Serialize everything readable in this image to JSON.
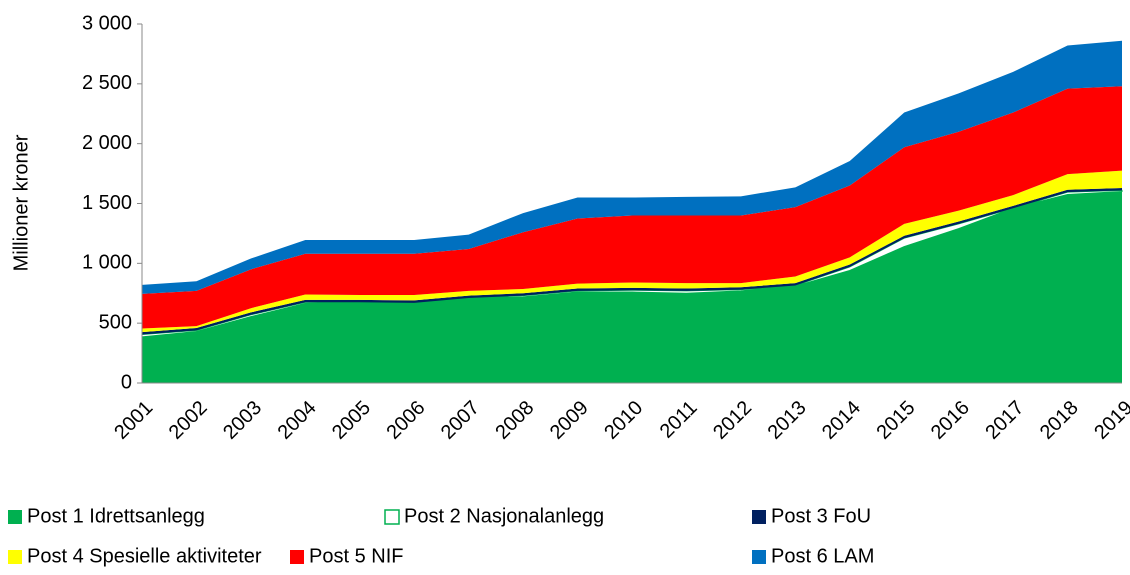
{
  "chart_data": {
    "type": "stacked-area",
    "y_label": "Millioner kroner",
    "categories": [
      "2001",
      "2002",
      "2003",
      "2004",
      "2005",
      "2006",
      "2007",
      "2008",
      "2009",
      "2010",
      "2011",
      "2012",
      "2013",
      "2014",
      "2015",
      "2016",
      "2017",
      "2018",
      "2019"
    ],
    "series": [
      {
        "name": "Post 1 Idrettsanlegg",
        "color": "#00b050",
        "values": [
          385,
          430,
          555,
          665,
          670,
          665,
          705,
          720,
          760,
          760,
          750,
          770,
          810,
          940,
          1140,
          1290,
          1460,
          1575,
          1600
        ]
      },
      {
        "name": "Post 2 Nasjonalanlegg",
        "color": "#ffffff",
        "values": [
          20,
          10,
          15,
          10,
          5,
          5,
          5,
          10,
          10,
          15,
          20,
          10,
          5,
          30,
          70,
          40,
          0,
          20,
          10
        ]
      },
      {
        "name": "Post 3 FoU",
        "color": "#002060",
        "values": [
          20,
          20,
          20,
          20,
          20,
          20,
          20,
          20,
          20,
          20,
          20,
          20,
          20,
          20,
          20,
          20,
          20,
          20,
          20
        ]
      },
      {
        "name": "Post 4 Spesielle aktiviteter",
        "color": "#ffff00",
        "values": [
          30,
          15,
          35,
          45,
          40,
          45,
          40,
          35,
          40,
          45,
          45,
          35,
          55,
          60,
          100,
          90,
          90,
          130,
          145
        ]
      },
      {
        "name": "Post 5 NIF",
        "color": "#ff0000",
        "values": [
          290,
          295,
          325,
          340,
          345,
          345,
          350,
          475,
          545,
          560,
          565,
          565,
          580,
          600,
          640,
          660,
          690,
          715,
          705
        ]
      },
      {
        "name": "Post 6 LAM",
        "color": "#0070c0",
        "values": [
          75,
          80,
          90,
          115,
          115,
          115,
          120,
          160,
          175,
          150,
          155,
          160,
          165,
          205,
          290,
          320,
          340,
          360,
          380
        ]
      }
    ],
    "ylim": [
      0,
      3000
    ],
    "yticks": [
      0,
      500,
      {
        "value": 1000,
        "label": "1 000"
      },
      {
        "value": 1500,
        "label": "1 500"
      },
      {
        "value": 2000,
        "label": "2 000"
      },
      {
        "value": 2500,
        "label": "2 500"
      },
      {
        "value": 3000,
        "label": "3 000"
      }
    ],
    "legend": "bottom"
  }
}
